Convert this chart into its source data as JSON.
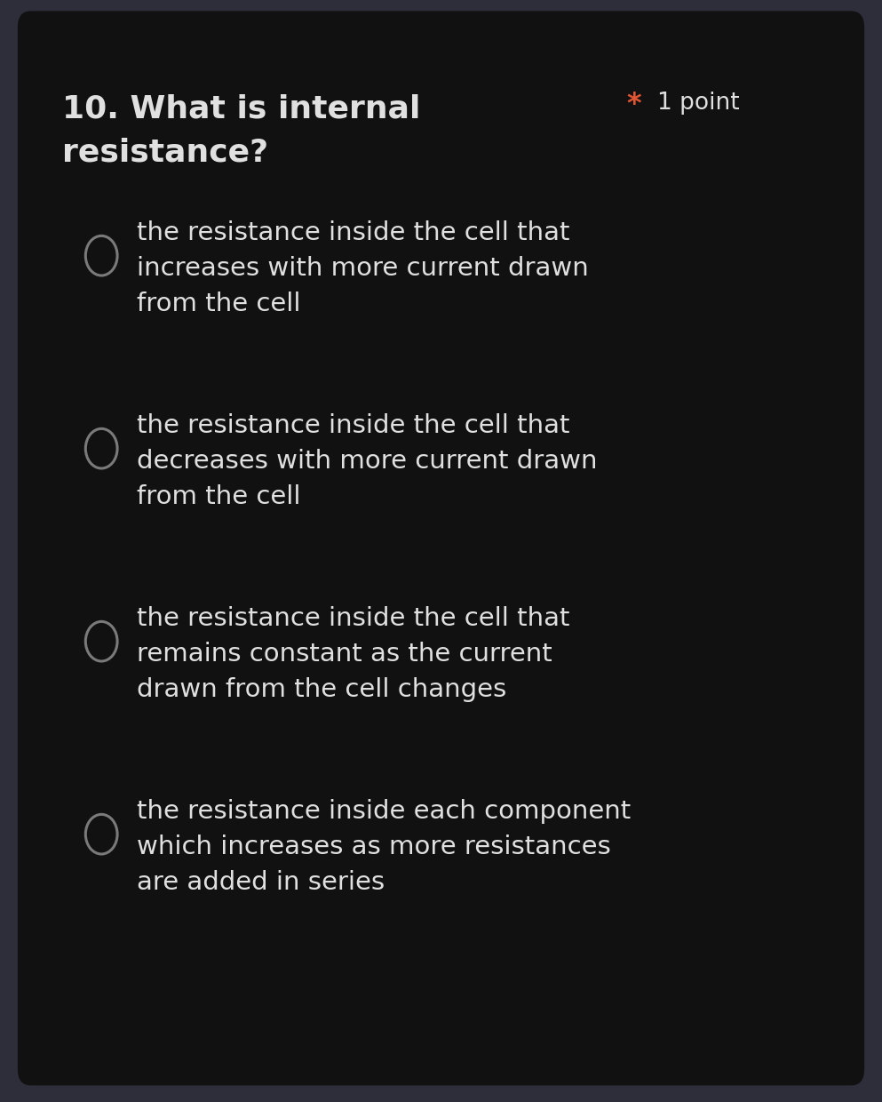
{
  "bg_outer": "#2e2e3a",
  "bg_inner": "#111111",
  "text_color": "#e0e0e0",
  "asterisk_color": "#e05533",
  "question_line1": "10. What is internal",
  "question_line2": "resistance?",
  "point_label": "1 point",
  "options": [
    "the resistance inside the cell that\nincreases with more current drawn\nfrom the cell",
    "the resistance inside the cell that\ndecreases with more current drawn\nfrom the cell",
    "the resistance inside the cell that\nremains constant as the current\ndrawn from the cell changes",
    "the resistance inside each component\nwhich increases as more resistances\nare added in series"
  ],
  "circle_color": "#7a7a7a",
  "question_fontsize": 26,
  "option_fontsize": 21,
  "point_fontsize": 19
}
